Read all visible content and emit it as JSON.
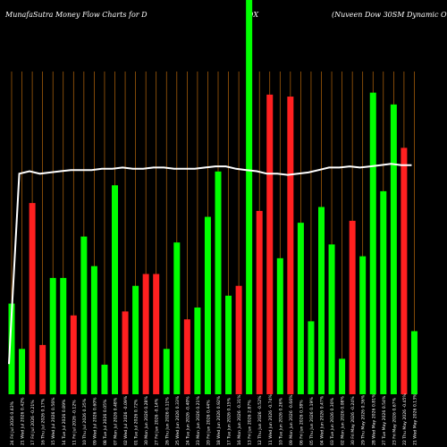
{
  "header": {
    "left": "MunafaSutra  Money Flow  Charts for D",
    "mid": "DX",
    "right": "(Nuveen  Dow  30SM Dynamic Overw"
  },
  "colors": {
    "background": "#000000",
    "grid": "#b8680c",
    "up": "#00ff00",
    "down": "#ff2020",
    "line": "#ffffff",
    "label": "#ffffff"
  },
  "chart_data": {
    "type": "bar",
    "ylim": [
      0,
      100
    ],
    "line_ylim": [
      0,
      100
    ],
    "grid": "vertical",
    "categories": [
      "24 Fri Jul 2026 0.63%",
      "21 Wed Jul 2026 0.42%",
      "17 Fri Jul 2026 -0.21%",
      "16 Thu Jul 2026 0.17%",
      "15 Wed Jul 2026 0.56%",
      "14 Tue Jul 2026 0.89%",
      "11 Fri Jul 2026 -0.12%",
      "10 Thu Jul 2026 0.35%",
      "09 Wed Jul 2026 0.60%",
      "08 Tue Jul 2026 0.05%",
      "07 Mon Jul 2026 0.48%",
      "02 Wed Jul 2026 -0.09%",
      "01 Tue Jul 2026 0.72%",
      "30 Mon Jun 2026 0.28%",
      "27 Fri Jun 2026 -0.14%",
      "26 Thu Jun 2026 0.11%",
      "25 Wed Jun 2026 0.33%",
      "24 Tue Jun 2026 -0.40%",
      "23 Mon Jun 2026 0.21%",
      "20 Fri Jun 2026 0.44%",
      "18 Wed Jun 2026 0.92%",
      "17 Tue Jun 2026 0.15%",
      "16 Mon Jun 2026 -0.31%",
      "13 Fri Jun 2026 2.87%",
      "12 Thu Jun 2026 -0.52%",
      "11 Wed Jun 2026 -0.74%",
      "10 Tue Jun 2026 0.26%",
      "09 Mon Jun 2026 -0.66%",
      "06 Fri Jun 2026 0.38%",
      "05 Thu Jun 2026 0.19%",
      "04 Wed Jun 2026 0.47%",
      "03 Tue Jun 2026 0.30%",
      "02 Mon Jun 2026 0.08%",
      "30 Fri May 2026 -0.24%",
      "29 Thu May 2026 0.36%",
      "28 Wed May 2026 0.81%",
      "27 Tue May 2026 0.54%",
      "23 Fri May 2026 0.67%",
      "22 Thu May 2026 -0.45%",
      "21 Wed May 2026 0.13%"
    ],
    "values": [
      23,
      11.5,
      48.5,
      12.5,
      29.5,
      29.5,
      20,
      40,
      32.5,
      7.5,
      53,
      21,
      27.5,
      30.5,
      30.5,
      11.5,
      38.5,
      19,
      22,
      45,
      56.5,
      25,
      27.5,
      100,
      46.5,
      76,
      34.5,
      75.5,
      43.5,
      18.5,
      47.5,
      38,
      9,
      44,
      35,
      76.5,
      51.5,
      73.5,
      62.5,
      16
    ],
    "directions": [
      "up",
      "up",
      "down",
      "down",
      "up",
      "up",
      "down",
      "up",
      "up",
      "up",
      "up",
      "down",
      "up",
      "down",
      "down",
      "up",
      "up",
      "down",
      "up",
      "up",
      "up",
      "up",
      "down",
      "up",
      "down",
      "down",
      "up",
      "down",
      "up",
      "up",
      "up",
      "up",
      "up",
      "down",
      "up",
      "up",
      "up",
      "up",
      "down",
      "up"
    ],
    "line_values": [
      12,
      90,
      91,
      90,
      90.5,
      91,
      91.5,
      91.5,
      91.5,
      92,
      92,
      92.5,
      92,
      92,
      92.5,
      92.5,
      92,
      92,
      92,
      92.5,
      93,
      93,
      92,
      91.5,
      91,
      90,
      90,
      89.5,
      90,
      90.5,
      91.5,
      92.5,
      92.5,
      93,
      92.5,
      93,
      93.5,
      94,
      93.5,
      93.5
    ]
  }
}
